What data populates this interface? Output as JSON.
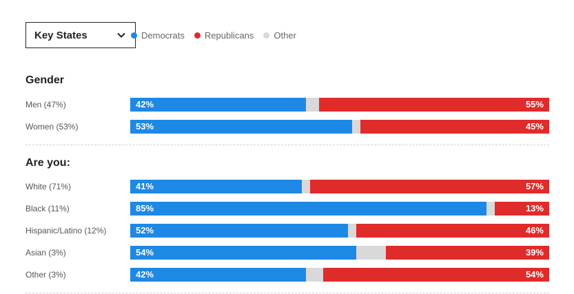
{
  "selector": {
    "label": "Key States"
  },
  "legend": [
    {
      "name": "Democrats",
      "color": "#1e88e5"
    },
    {
      "name": "Republicans",
      "color": "#e02b2b"
    },
    {
      "name": "Other",
      "color": "#d9d9d9"
    }
  ],
  "chart_data": {
    "type": "bar",
    "stacked": true,
    "orientation": "horizontal",
    "series_names": [
      "Democrats",
      "Other",
      "Republicans"
    ],
    "groups": [
      {
        "title": "Gender",
        "rows": [
          {
            "label": "Men (47%)",
            "dem": 42,
            "rep": 55,
            "dem_label": "42%",
            "rep_label": "55%"
          },
          {
            "label": "Women (53%)",
            "dem": 53,
            "rep": 45,
            "dem_label": "53%",
            "rep_label": "45%"
          }
        ]
      },
      {
        "title": "Are you:",
        "rows": [
          {
            "label": "White (71%)",
            "dem": 41,
            "rep": 57,
            "dem_label": "41%",
            "rep_label": "57%"
          },
          {
            "label": "Black (11%)",
            "dem": 85,
            "rep": 13,
            "dem_label": "85%",
            "rep_label": "13%"
          },
          {
            "label": "Hispanic/Latino (12%)",
            "dem": 52,
            "rep": 46,
            "dem_label": "52%",
            "rep_label": "46%"
          },
          {
            "label": "Asian (3%)",
            "dem": 54,
            "rep": 39,
            "dem_label": "54%",
            "rep_label": "39%"
          },
          {
            "label": "Other (3%)",
            "dem": 42,
            "rep": 54,
            "dem_label": "42%",
            "rep_label": "54%"
          }
        ]
      }
    ]
  }
}
